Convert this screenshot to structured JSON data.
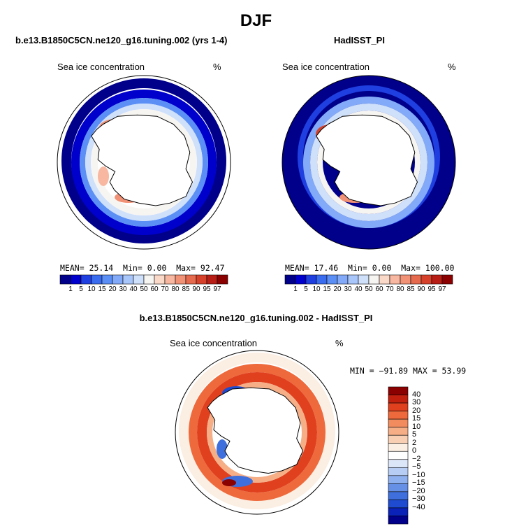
{
  "figure": {
    "title": "DJF"
  },
  "panels": [
    {
      "title": "b.e13.B1850C5CN.ne120_g16.tuning.002 (yrs 1-4)",
      "label": "Sea ice concentration",
      "units": "%",
      "stats": {
        "mean_label": "MEAN=",
        "mean": "25.14",
        "min_label": "Min=",
        "min": "0.00",
        "max_label": "Max=",
        "max": "92.47"
      }
    },
    {
      "title": "HadISST_PI",
      "label": "Sea ice concentration",
      "units": "%",
      "stats": {
        "mean_label": "MEAN=",
        "mean": "17.46",
        "min_label": "Min=",
        "min": "0.00",
        "max_label": "Max=",
        "max": "100.00"
      }
    },
    {
      "title": "b.e13.B1850C5CN.ne120_g16.tuning.002 - HadISST_PI",
      "label": "Sea ice concentration",
      "units": "%",
      "minmax": "MIN = −91.89  MAX =  53.99"
    }
  ],
  "chart_data": [
    {
      "type": "heatmap",
      "title": "b.e13.B1850C5CN.ne120_g16.tuning.002 (yrs 1-4)",
      "variable": "Sea ice concentration",
      "units": "%",
      "projection": "south-polar-stereographic",
      "mean": 25.14,
      "min": 0.0,
      "max": 92.47,
      "colorbar_levels": [
        1,
        5,
        10,
        15,
        20,
        30,
        40,
        50,
        60,
        70,
        80,
        85,
        90,
        95,
        97
      ],
      "colorbar_colors": [
        "#00008b",
        "#0000cd",
        "#1f3fe0",
        "#3a6cf0",
        "#5b8ff5",
        "#82aaf8",
        "#a9c6fa",
        "#cfe0fb",
        "#f7f5f2",
        "#fbd9c8",
        "#f8b7a0",
        "#f19276",
        "#e66a4e",
        "#d6412b",
        "#b81e16",
        "#8b0000"
      ]
    },
    {
      "type": "heatmap",
      "title": "HadISST_PI",
      "variable": "Sea ice concentration",
      "units": "%",
      "projection": "south-polar-stereographic",
      "mean": 17.46,
      "min": 0.0,
      "max": 100.0,
      "colorbar_levels": [
        1,
        5,
        10,
        15,
        20,
        30,
        40,
        50,
        60,
        70,
        80,
        85,
        90,
        95,
        97
      ],
      "colorbar_colors": [
        "#00008b",
        "#0000cd",
        "#1f3fe0",
        "#3a6cf0",
        "#5b8ff5",
        "#82aaf8",
        "#a9c6fa",
        "#cfe0fb",
        "#f7f5f2",
        "#fbd9c8",
        "#f8b7a0",
        "#f19276",
        "#e66a4e",
        "#d6412b",
        "#b81e16",
        "#8b0000"
      ]
    },
    {
      "type": "heatmap",
      "title": "b.e13.B1850C5CN.ne120_g16.tuning.002 - HadISST_PI",
      "variable": "Sea ice concentration",
      "units": "%",
      "projection": "south-polar-stereographic",
      "min": -91.89,
      "max": 53.99,
      "colorbar_levels": [
        40,
        30,
        20,
        15,
        10,
        5,
        2,
        0,
        -2,
        -5,
        -10,
        -15,
        -20,
        -30,
        -40
      ],
      "colorbar_level_labels": [
        "40",
        "30",
        "20",
        "15",
        "10",
        "5",
        "2",
        "0",
        "−2",
        "−5",
        "−10",
        "−15",
        "−20",
        "−30",
        "−40"
      ],
      "colorbar_colors": [
        "#8b0000",
        "#c1200f",
        "#e0401e",
        "#ee6a3c",
        "#f28c5f",
        "#f6ae87",
        "#f9cfb3",
        "#fbeee2",
        "#ffffff",
        "#dce6f9",
        "#b8cdf4",
        "#8fb0ee",
        "#6690e6",
        "#3f6fdc",
        "#1f4bd0",
        "#0a22b8",
        "#00008b"
      ]
    }
  ]
}
